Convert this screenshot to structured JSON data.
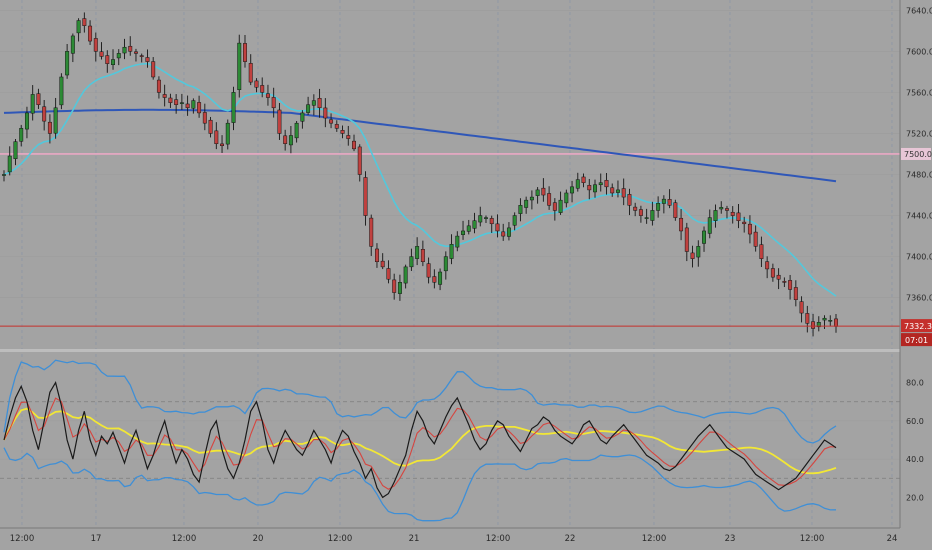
{
  "chart_data": [
    {
      "type": "candlestick",
      "title": "",
      "xlabel": "",
      "ylabel": "",
      "x_tick_labels": [
        "12:00",
        "17",
        "12:00",
        "20",
        "12:00",
        "21",
        "12:00",
        "22",
        "12:00",
        "23",
        "12:00",
        "24"
      ],
      "y_tick_labels": [
        "7640.0",
        "7600.0",
        "7560.0",
        "7520.0",
        "7480.0",
        "7440.0",
        "7400.0",
        "7360.0"
      ],
      "ylim": [
        7310,
        7650
      ],
      "grid": true,
      "price_series": [
        7480,
        7498,
        7512,
        7525,
        7540,
        7558,
        7548,
        7532,
        7520,
        7545,
        7575,
        7600,
        7615,
        7630,
        7625,
        7610,
        7600,
        7595,
        7588,
        7592,
        7598,
        7604,
        7600,
        7598,
        7595,
        7590,
        7575,
        7560,
        7555,
        7550,
        7548,
        7550,
        7545,
        7552,
        7540,
        7530,
        7520,
        7510,
        7508,
        7530,
        7560,
        7608,
        7590,
        7570,
        7565,
        7560,
        7555,
        7545,
        7520,
        7510,
        7518,
        7530,
        7540,
        7548,
        7552,
        7545,
        7535,
        7530,
        7525,
        7520,
        7515,
        7505,
        7480,
        7440,
        7410,
        7395,
        7390,
        7378,
        7365,
        7375,
        7390,
        7400,
        7410,
        7395,
        7380,
        7375,
        7385,
        7400,
        7412,
        7420,
        7425,
        7430,
        7435,
        7440,
        7438,
        7432,
        7425,
        7420,
        7428,
        7440,
        7450,
        7455,
        7458,
        7465,
        7460,
        7450,
        7445,
        7455,
        7462,
        7468,
        7475,
        7472,
        7465,
        7470,
        7472,
        7468,
        7462,
        7465,
        7458,
        7450,
        7445,
        7440,
        7438,
        7445,
        7452,
        7456,
        7450,
        7438,
        7425,
        7405,
        7398,
        7410,
        7425,
        7438,
        7445,
        7448,
        7445,
        7440,
        7435,
        7432,
        7422,
        7410,
        7398,
        7388,
        7380,
        7378,
        7375,
        7368,
        7358,
        7345,
        7335,
        7330,
        7336,
        7340,
        7338,
        7332
      ],
      "price_last": "7332.3",
      "countdown": "07:01",
      "horizontal_level": "7500.0",
      "series": [
        {
          "name": "",
          "role": "fast moving average",
          "color": "#53c8dc"
        },
        {
          "name": "",
          "role": "slow moving average",
          "color": "#2f57b8"
        }
      ],
      "colors": {
        "up": "#2c8a35",
        "down": "#c0413f",
        "wick": "#141414",
        "level_line": "#e9a8c4",
        "last_price": "#c4302c"
      }
    },
    {
      "type": "line",
      "title": "",
      "y_tick_labels": [
        "80.0",
        "60.0",
        "40.0",
        "20.0"
      ],
      "ylim": [
        4,
        96
      ],
      "grid": true,
      "reference_levels": [
        70,
        30
      ],
      "oscillator_values": [
        50,
        62,
        72,
        78,
        70,
        55,
        45,
        60,
        75,
        80,
        68,
        50,
        40,
        55,
        65,
        50,
        42,
        52,
        48,
        54,
        46,
        38,
        48,
        55,
        45,
        35,
        42,
        52,
        60,
        48,
        38,
        45,
        40,
        32,
        28,
        42,
        55,
        60,
        45,
        35,
        30,
        38,
        50,
        65,
        70,
        60,
        45,
        38,
        48,
        55,
        50,
        45,
        42,
        48,
        55,
        50,
        45,
        38,
        48,
        55,
        52,
        44,
        38,
        30,
        35,
        25,
        20,
        22,
        28,
        35,
        42,
        55,
        65,
        60,
        52,
        48,
        55,
        62,
        68,
        72,
        65,
        58,
        50,
        45,
        48,
        55,
        60,
        58,
        52,
        48,
        44,
        50,
        56,
        58,
        62,
        60,
        55,
        52,
        50,
        48,
        52,
        58,
        60,
        55,
        50,
        48,
        52,
        55,
        58,
        54,
        50,
        46,
        42,
        40,
        38,
        35,
        34,
        36,
        40,
        44,
        48,
        52,
        55,
        58,
        54,
        50,
        46,
        44,
        42,
        40,
        36,
        32,
        30,
        28,
        26,
        24,
        26,
        28,
        30,
        34,
        38,
        42,
        46,
        50,
        48,
        46
      ],
      "series": [
        {
          "name": "",
          "role": "oscillator",
          "color": "#1a1a1a"
        },
        {
          "name": "",
          "role": "signal",
          "color": "#d6453f"
        },
        {
          "name": "",
          "role": "moving average",
          "color": "#f2e735"
        },
        {
          "name": "",
          "role": "upper band",
          "color": "#3f8fd6"
        },
        {
          "name": "",
          "role": "lower band",
          "color": "#3f8fd6"
        }
      ]
    }
  ]
}
